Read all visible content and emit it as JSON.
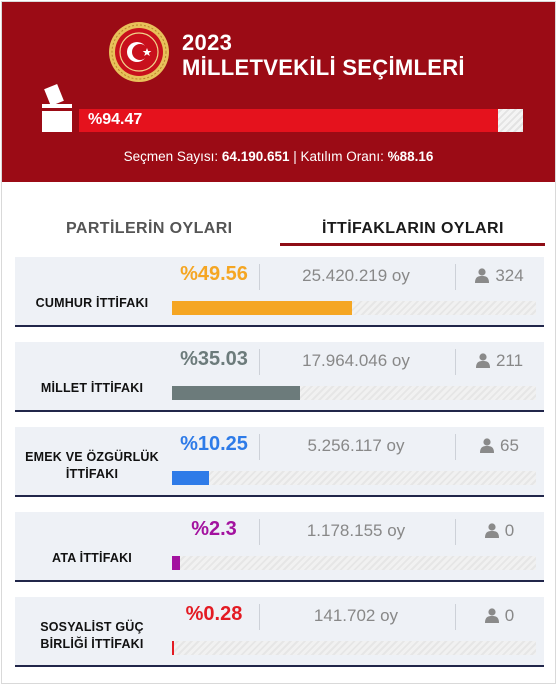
{
  "header": {
    "year": "2023",
    "title": "MİLLETVEKİLİ SEÇİMLERİ",
    "turnout_label": "%94.47",
    "turnout_value": 94.47,
    "stats_voters_label": "Seçmen Sayısı:",
    "stats_voters_value": "64.190.651",
    "stats_separator": "|",
    "stats_turnout_label": "Katılım Oranı:",
    "stats_turnout_value": "%88.16"
  },
  "tabs": {
    "parties": "PARTİLERİN OYLARI",
    "alliances": "İTTİFAKLARIN OYLARI",
    "active": "alliances"
  },
  "colors": {
    "header_bg": "#9b0b15",
    "turnout_fill": "#e5121d"
  },
  "alliances": [
    {
      "name": "CUMHUR İTTİFAKI",
      "pct_label": "%49.56",
      "pct": 49.56,
      "votes": "25.420.219 oy",
      "seats": "324",
      "color": "#f5a623"
    },
    {
      "name": "MİLLET İTTİFAKI",
      "pct_label": "%35.03",
      "pct": 35.03,
      "votes": "17.964.046 oy",
      "seats": "211",
      "color": "#6c7b7b"
    },
    {
      "name": "EMEK VE ÖZGÜRLÜK İTTİFAKI",
      "pct_label": "%10.25",
      "pct": 10.25,
      "votes": "5.256.117 oy",
      "seats": "65",
      "color": "#2e7be8"
    },
    {
      "name": "ATA İTTİFAKI",
      "pct_label": "%2.3",
      "pct": 2.3,
      "votes": "1.178.155 oy",
      "seats": "0",
      "color": "#a3129f"
    },
    {
      "name": "SOSYALİST GÜÇ BİRLİĞİ İTTİFAKI",
      "pct_label": "%0.28",
      "pct": 0.28,
      "votes": "141.702 oy",
      "seats": "0",
      "color": "#e31b23"
    }
  ],
  "icons": {
    "emblem": "parliament-emblem-icon",
    "ballot": "ballot-box-icon",
    "seats": "person-icon"
  }
}
